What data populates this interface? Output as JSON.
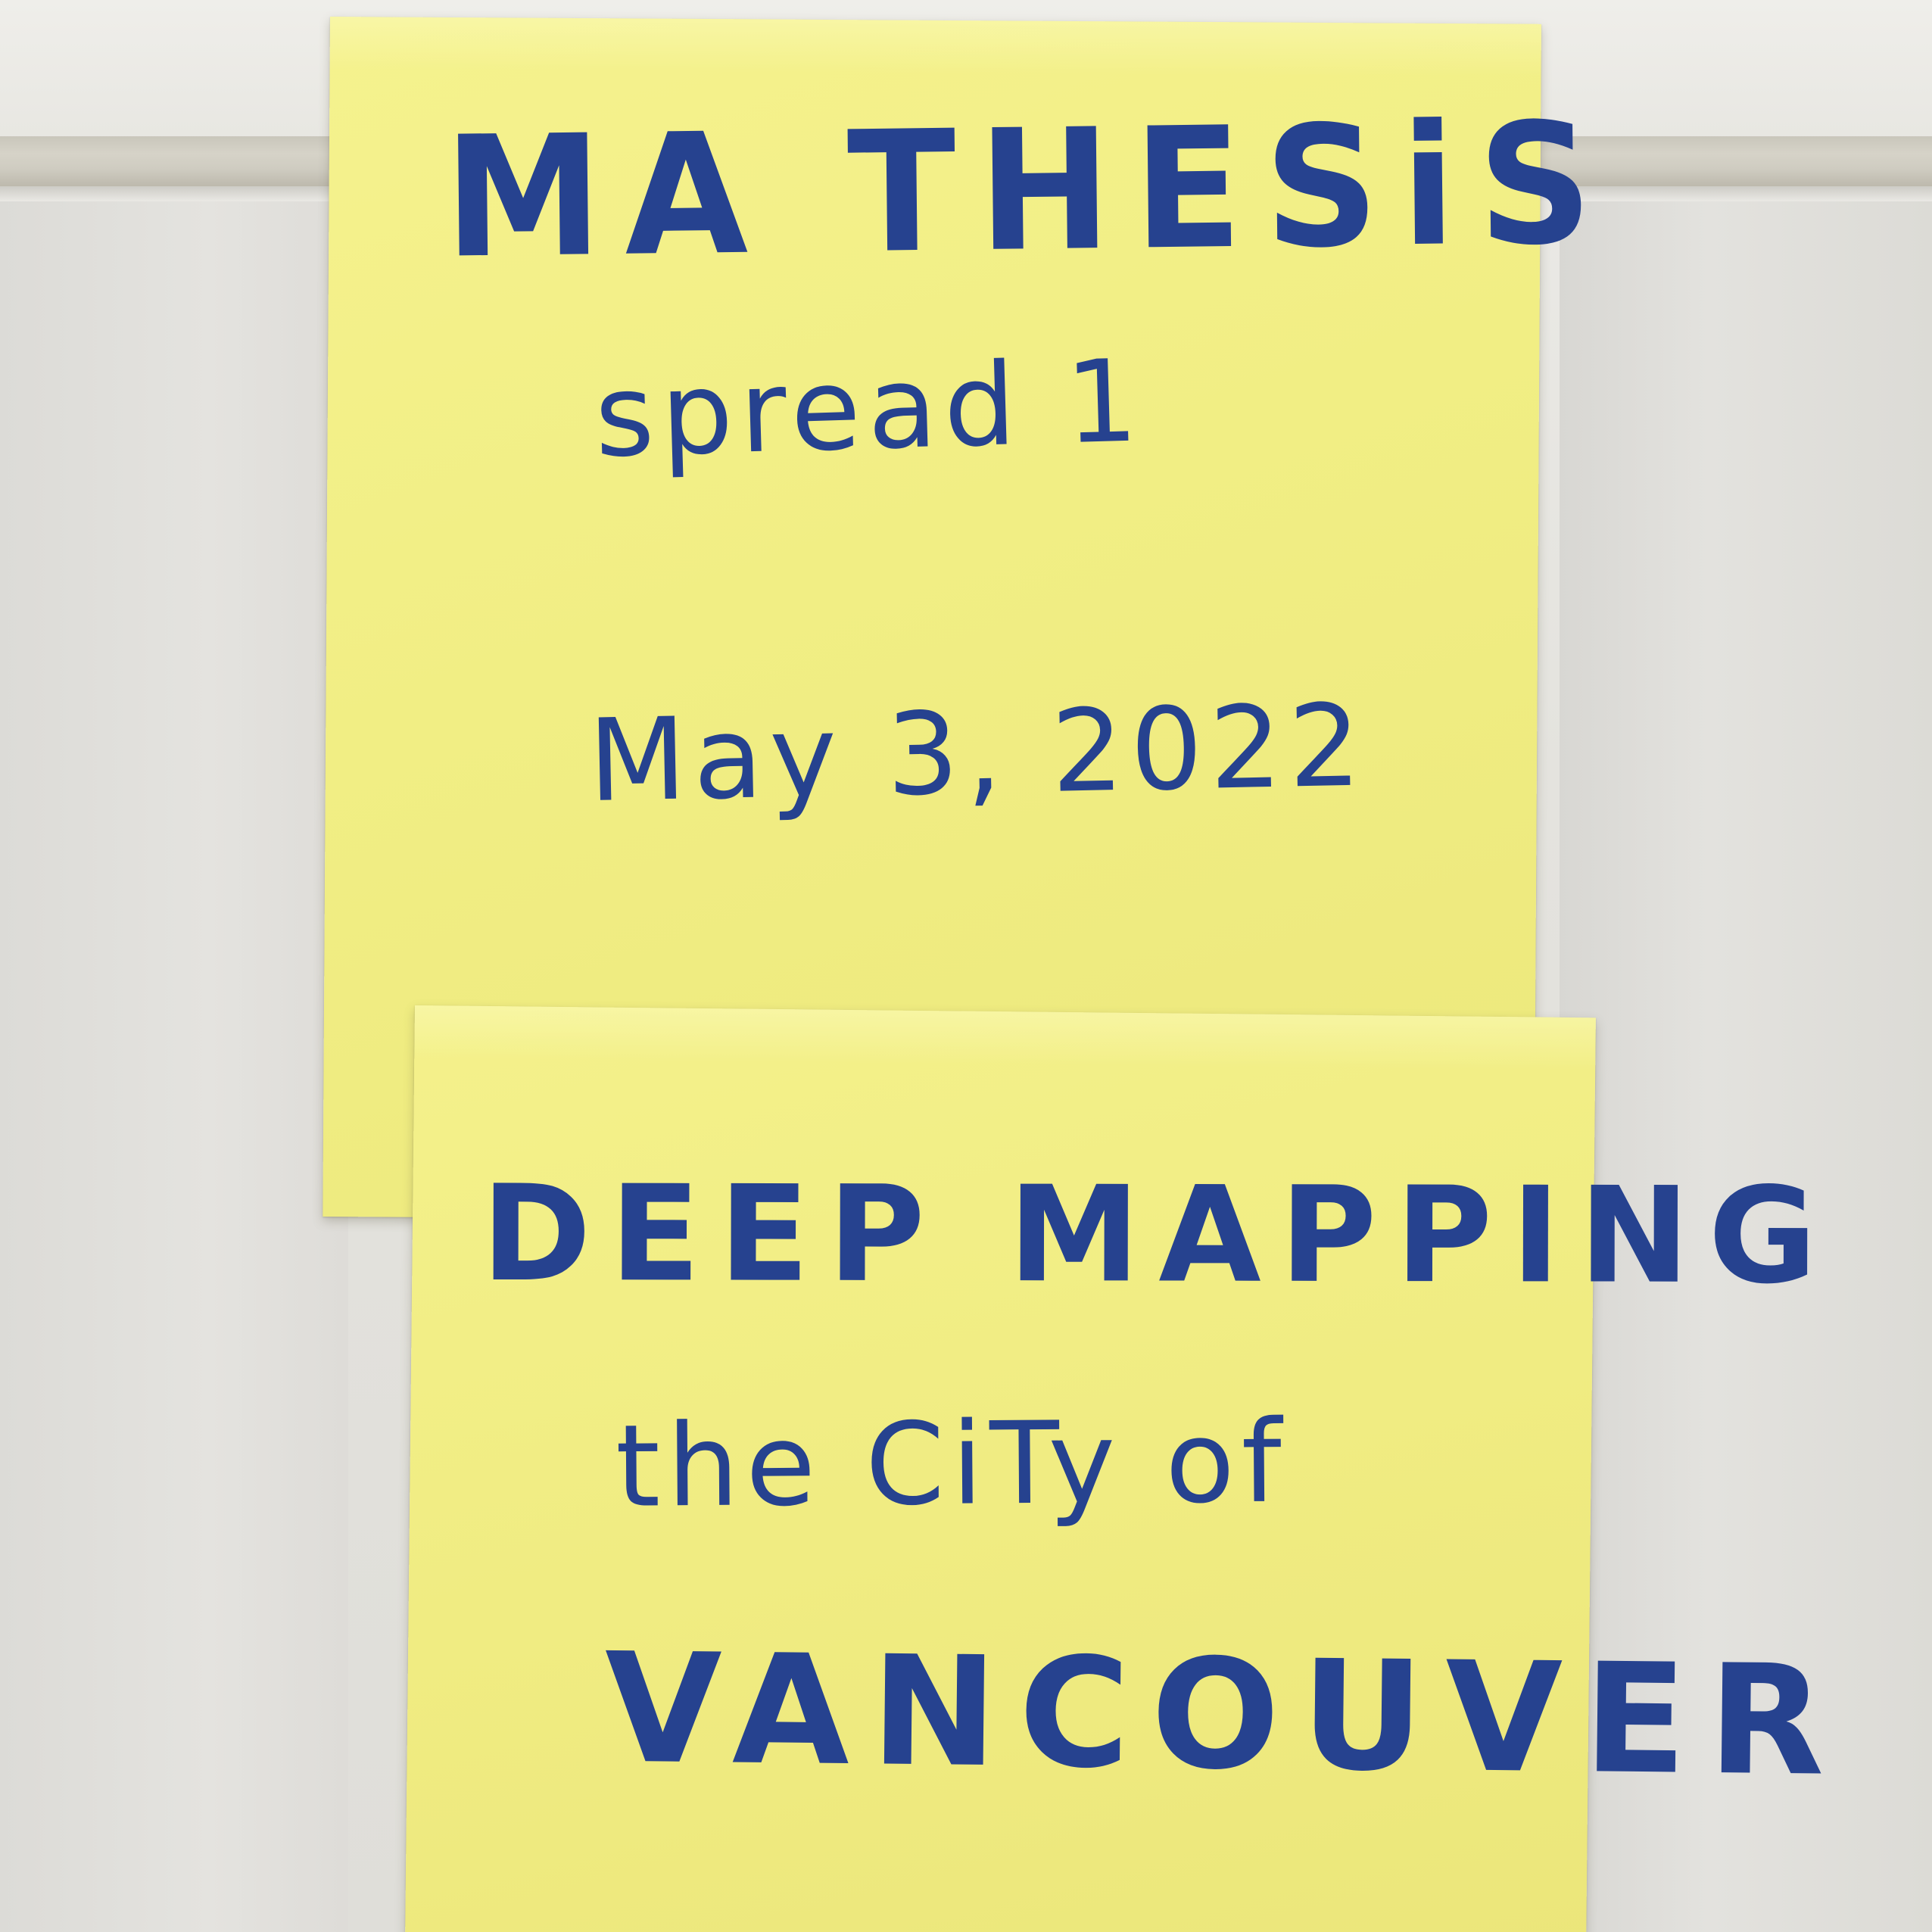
{
  "photo": {
    "wall_color": "#e3e2dd",
    "note_color": "#f2ef86",
    "ink_color": "#26428f"
  },
  "note_top": {
    "title": "MA THESiS",
    "subtitle": "spread 1",
    "date": "May 3, 2022"
  },
  "note_bottom": {
    "line1": "DEEP MAPPING",
    "line2": "the CiTy of",
    "line3": "VANCOUVER"
  }
}
